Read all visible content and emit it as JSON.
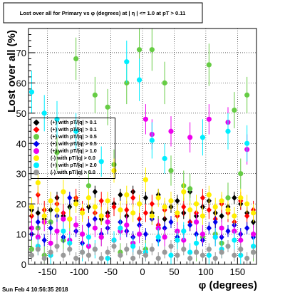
{
  "chart_data": {
    "type": "scatter",
    "title": "Lost over all for Primary vs φ (degrees) at | η | <= 1.0 at pT > 0.11",
    "xlabel": "φ (degrees)",
    "ylabel": "Lost over all (%)",
    "xlim": [
      -180,
      180
    ],
    "ylim": [
      0,
      78
    ],
    "x_ticks": [
      -150,
      -100,
      -50,
      0,
      50,
      100,
      150
    ],
    "y_ticks": [
      0,
      10,
      20,
      30,
      40,
      50,
      60,
      70
    ],
    "grid": true,
    "legend_position": "left-center",
    "footer": "Sun Feb  4 10:56:35 2018",
    "series": [
      {
        "name": "(+) with pT/|q| > 0.1",
        "color": "#000000",
        "marker": "diamond",
        "x": [
          -175,
          -165,
          -155,
          -145,
          -135,
          -125,
          -115,
          -105,
          -95,
          -85,
          -75,
          -65,
          -55,
          -45,
          -35,
          -25,
          -15,
          -5,
          5,
          15,
          25,
          35,
          45,
          55,
          65,
          75,
          85,
          95,
          105,
          115,
          125,
          135,
          145,
          155,
          165,
          175
        ],
        "y": [
          18,
          17,
          15,
          18,
          22,
          16,
          19,
          21,
          17,
          19,
          24,
          15,
          17,
          20,
          23,
          16,
          24,
          20,
          22,
          17,
          23,
          15,
          19,
          21,
          17,
          24,
          16,
          19,
          21,
          17,
          16,
          19,
          22,
          20,
          17,
          14
        ],
        "yerr": [
          2,
          2,
          2,
          2,
          2,
          2,
          2,
          2,
          2,
          2,
          2,
          2,
          2,
          2,
          2,
          2,
          2,
          2,
          2,
          2,
          2,
          2,
          2,
          2,
          2,
          2,
          2,
          2,
          2,
          2,
          2,
          2,
          2,
          2,
          2,
          2
        ]
      },
      {
        "name": "(+) with pT/|q| > 0.1",
        "color": "#ff0000",
        "marker": "diamond",
        "x": [
          -175,
          -165,
          -155,
          -145,
          -135,
          -125,
          -115,
          -105,
          -95,
          -85,
          -75,
          -65,
          -55,
          -45,
          -35,
          -25,
          -15,
          -5,
          5,
          15,
          25,
          35,
          45,
          55,
          65,
          75,
          85,
          95,
          105,
          115,
          125,
          135,
          145,
          155,
          165,
          175
        ],
        "y": [
          16,
          23,
          18,
          14,
          20,
          17,
          15,
          22,
          18,
          13,
          17,
          21,
          16,
          19,
          14,
          18,
          22,
          15,
          17,
          20,
          13,
          18,
          21,
          16,
          19,
          14,
          17,
          22,
          18,
          15,
          20,
          17,
          14,
          21,
          16,
          18
        ],
        "yerr": [
          3,
          3,
          3,
          3,
          3,
          3,
          3,
          3,
          3,
          3,
          3,
          3,
          3,
          3,
          3,
          3,
          3,
          3,
          3,
          3,
          3,
          3,
          3,
          3,
          3,
          3,
          3,
          3,
          3,
          3,
          3,
          3,
          3,
          3,
          3,
          3
        ]
      },
      {
        "name": "(+) with pT/|q| > 0.5",
        "color": "#66cc44",
        "marker": "circle",
        "x": [
          -175,
          -165,
          -155,
          -145,
          -135,
          -125,
          -115,
          -105,
          -95,
          -85,
          -75,
          -65,
          -55,
          -45,
          -35,
          -25,
          -15,
          -5,
          5,
          15,
          25,
          35,
          45,
          55,
          65,
          75,
          85,
          95,
          105,
          115,
          125,
          135,
          145,
          155,
          165,
          175
        ],
        "y": [
          5,
          12,
          3,
          14,
          37,
          8,
          15,
          68,
          10,
          26,
          56,
          9,
          52,
          33,
          4,
          60,
          7,
          71,
          5,
          71,
          12,
          60,
          31,
          8,
          26,
          25,
          4,
          9,
          66,
          10,
          7,
          22,
          51,
          30,
          56,
          4
        ],
        "yerr": [
          3,
          4,
          3,
          4,
          6,
          3,
          4,
          7,
          3,
          5,
          6,
          3,
          6,
          5,
          3,
          7,
          3,
          7,
          3,
          7,
          4,
          7,
          5,
          3,
          5,
          5,
          3,
          3,
          7,
          3,
          3,
          5,
          6,
          5,
          6,
          3
        ]
      },
      {
        "name": "(+) with pT/|q| > 0.5",
        "color": "#0000ee",
        "marker": "diamond",
        "x": [
          -175,
          -165,
          -155,
          -145,
          -135,
          -125,
          -115,
          -105,
          -95,
          -85,
          -75,
          -65,
          -55,
          -45,
          -35,
          -25,
          -15,
          -5,
          5,
          15,
          25,
          35,
          45,
          55,
          65,
          75,
          85,
          95,
          105,
          115,
          125,
          135,
          145,
          155,
          165,
          175
        ],
        "y": [
          10,
          14,
          8,
          12,
          16,
          9,
          22,
          11,
          7,
          13,
          15,
          10,
          12,
          8,
          14,
          11,
          9,
          13,
          10,
          15,
          8,
          12,
          14,
          9,
          11,
          13,
          10,
          8,
          12,
          14,
          9,
          11,
          13,
          10,
          12,
          9
        ],
        "yerr": [
          2,
          2,
          2,
          2,
          2,
          2,
          2,
          2,
          2,
          2,
          2,
          2,
          2,
          2,
          2,
          2,
          2,
          2,
          2,
          2,
          2,
          2,
          2,
          2,
          2,
          2,
          2,
          2,
          2,
          2,
          2,
          2,
          2,
          2,
          2,
          2
        ]
      },
      {
        "name": "(+) with pT/|q| > 1.0",
        "color": "#ee00ee",
        "marker": "circle",
        "x": [
          -175,
          -165,
          -155,
          -145,
          -135,
          -125,
          -115,
          -105,
          -95,
          -85,
          -75,
          -65,
          -55,
          -45,
          -35,
          -25,
          -15,
          -5,
          5,
          15,
          25,
          35,
          45,
          55,
          65,
          75,
          85,
          95,
          105,
          115,
          125,
          135,
          145,
          155,
          165,
          175
        ],
        "y": [
          12,
          9,
          14,
          7,
          11,
          15,
          8,
          13,
          10,
          6,
          12,
          9,
          14,
          8,
          11,
          13,
          7,
          10,
          48,
          43,
          12,
          9,
          44,
          11,
          8,
          42,
          14,
          10,
          48,
          9,
          12,
          47,
          11,
          8,
          38,
          10
        ],
        "yerr": [
          3,
          3,
          3,
          3,
          3,
          3,
          3,
          3,
          3,
          3,
          3,
          3,
          3,
          3,
          3,
          3,
          3,
          3,
          5,
          5,
          3,
          3,
          5,
          3,
          3,
          5,
          3,
          3,
          5,
          3,
          3,
          5,
          3,
          3,
          5,
          3
        ]
      },
      {
        "name": "(-) with pT/|q| > 0.0",
        "color": "#ffee00",
        "marker": "circle",
        "x": [
          -175,
          -165,
          -155,
          -145,
          -135,
          -125,
          -115,
          -105,
          -95,
          -85,
          -75,
          -65,
          -55,
          -45,
          -35,
          -25,
          -15,
          -5,
          5,
          15,
          25,
          35,
          45,
          55,
          65,
          75,
          85,
          95,
          105,
          115,
          125,
          135,
          145,
          155,
          165,
          175
        ],
        "y": [
          19,
          27,
          16,
          21,
          18,
          24,
          15,
          20,
          17,
          22,
          19,
          16,
          21,
          31,
          18,
          23,
          17,
          20,
          28,
          16,
          22,
          19,
          21,
          17,
          24,
          18,
          20,
          16,
          23,
          19,
          21,
          18,
          16,
          22,
          20,
          17
        ],
        "yerr": [
          3,
          4,
          3,
          3,
          3,
          4,
          3,
          3,
          3,
          3,
          3,
          3,
          3,
          4,
          3,
          3,
          3,
          3,
          4,
          3,
          3,
          3,
          3,
          3,
          3,
          3,
          3,
          3,
          3,
          3,
          3,
          3,
          3,
          3,
          3,
          3
        ]
      },
      {
        "name": "(+) with pT/|q| > 2.0",
        "color": "#00eeff",
        "marker": "circle",
        "x": [
          -175,
          -165,
          -155,
          -145,
          -135,
          -125,
          -115,
          -105,
          -95,
          -85,
          -75,
          -65,
          -55,
          -45,
          -35,
          -25,
          -15,
          -5,
          5,
          15,
          25,
          35,
          45,
          55,
          65,
          75,
          85,
          95,
          105,
          115,
          125,
          135,
          145,
          155,
          165,
          175
        ],
        "y": [
          57,
          6,
          50,
          3,
          48,
          11,
          7,
          44,
          4,
          9,
          5,
          34,
          2,
          8,
          12,
          67,
          6,
          61,
          4,
          41,
          9,
          35,
          3,
          8,
          11,
          4,
          7,
          42,
          3,
          9,
          5,
          44,
          8,
          3,
          40,
          6
        ],
        "yerr": [
          7,
          3,
          6,
          3,
          6,
          3,
          3,
          6,
          3,
          3,
          3,
          5,
          3,
          3,
          3,
          7,
          3,
          7,
          3,
          6,
          3,
          5,
          3,
          3,
          3,
          3,
          3,
          6,
          3,
          3,
          3,
          6,
          3,
          3,
          6,
          3
        ]
      },
      {
        "name": "(-) with pT/|q| > 0.0",
        "color": "#999999",
        "marker": "circle",
        "x": [
          -175,
          -165,
          -155,
          -145,
          -135,
          -125,
          -115,
          -105,
          -95,
          -85,
          -75,
          -65,
          -55,
          -45,
          -35,
          -25,
          -15,
          -5,
          5,
          15,
          25,
          35,
          45,
          55,
          65,
          75,
          85,
          95,
          105,
          115,
          125,
          135,
          145,
          155,
          165,
          175
        ],
        "y": [
          3,
          5,
          2,
          4,
          6,
          3,
          5,
          2,
          4,
          3,
          5,
          2,
          4,
          6,
          3,
          5,
          2,
          4,
          3,
          5,
          2,
          4,
          6,
          3,
          5,
          2,
          4,
          3,
          5,
          2,
          4,
          6,
          3,
          5,
          2,
          4
        ],
        "yerr": [
          2,
          2,
          2,
          2,
          2,
          2,
          2,
          2,
          2,
          2,
          2,
          2,
          2,
          2,
          2,
          2,
          2,
          2,
          2,
          2,
          2,
          2,
          2,
          2,
          2,
          2,
          2,
          2,
          2,
          2,
          2,
          2,
          2,
          2,
          2,
          2
        ]
      }
    ]
  }
}
